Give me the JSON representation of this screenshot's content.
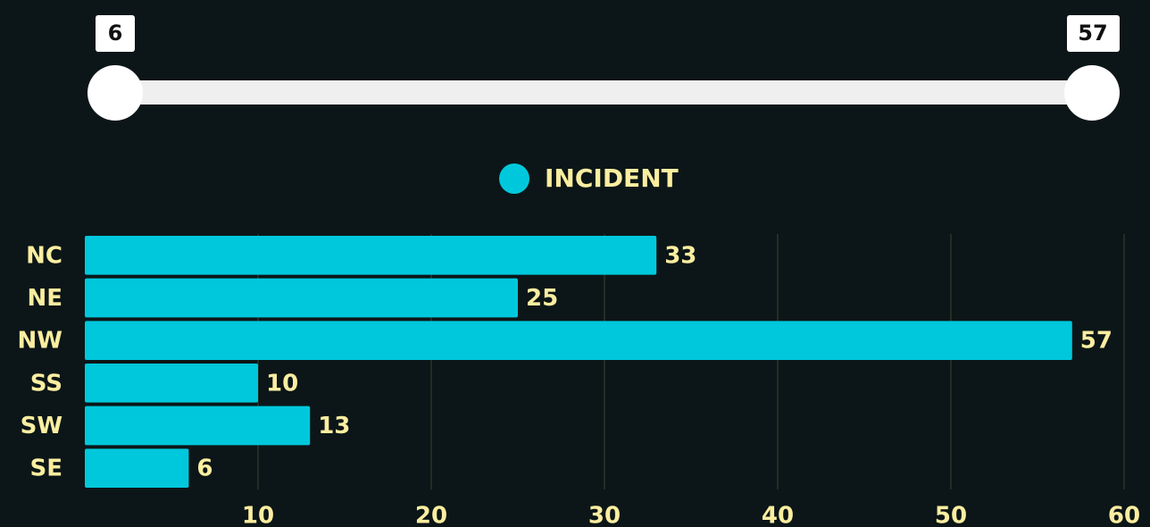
{
  "slider": {
    "min": 6,
    "max": 57
  },
  "chart_data": {
    "type": "bar",
    "orientation": "horizontal",
    "categories": [
      "NC",
      "NE",
      "NW",
      "SS",
      "SW",
      "SE"
    ],
    "series": [
      {
        "name": "INCIDENT",
        "color": "#00c8dc",
        "values": [
          33,
          25,
          57,
          10,
          13,
          6
        ]
      }
    ],
    "xlim": [
      0,
      60
    ],
    "xticks": [
      10,
      20,
      30,
      40,
      50,
      60
    ],
    "grid": true
  }
}
